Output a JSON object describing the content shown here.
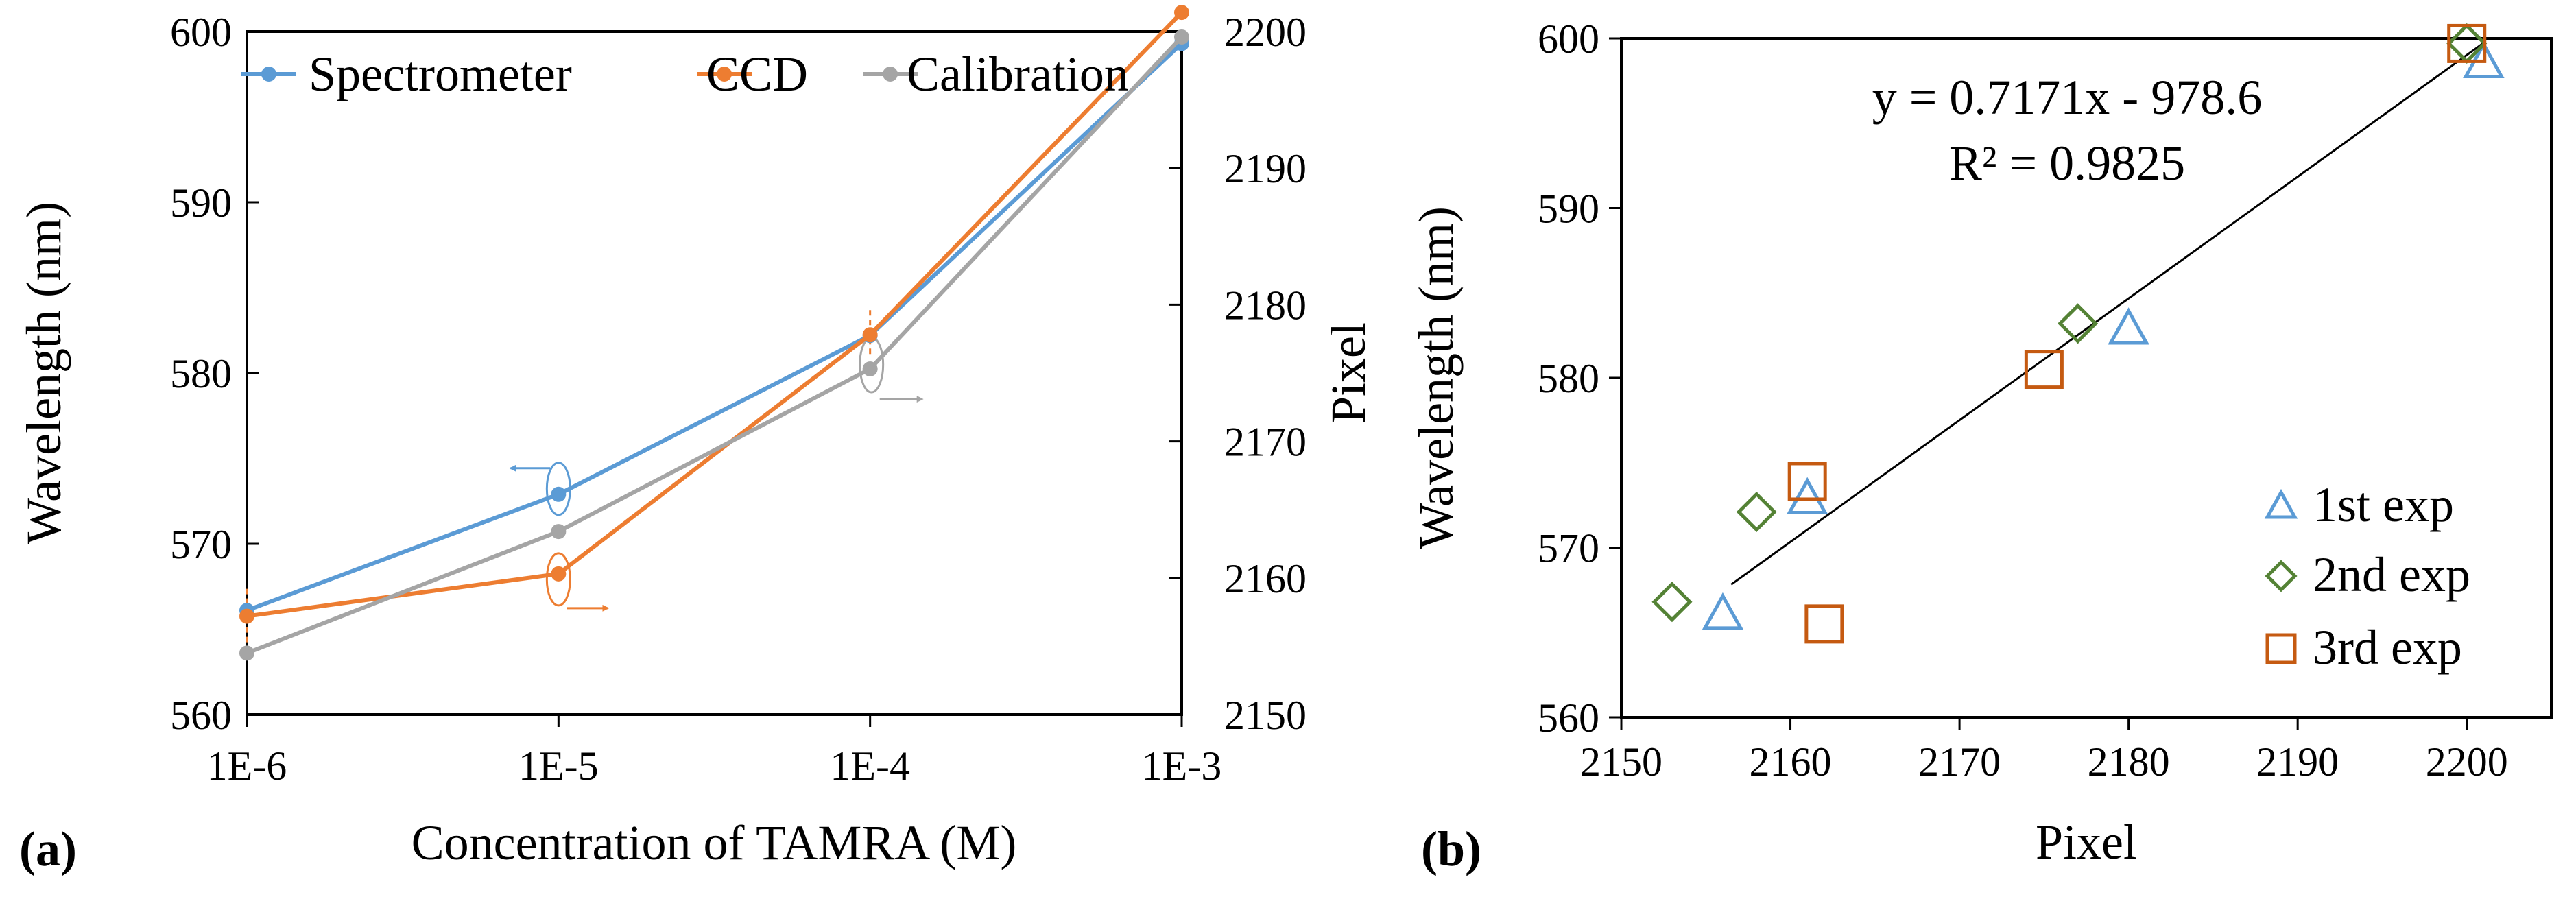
{
  "chart_data": [
    {
      "type": "line",
      "panel_label": "(a)",
      "xlabel": "Concentration of TAMRA (M)",
      "ylabel": "Wavelength (nm)",
      "y2label": "Pixel",
      "x_scale": "log",
      "categories": [
        "1E-6",
        "1E-5",
        "1E-4",
        "1E-3"
      ],
      "x": [
        1e-06,
        1e-05,
        0.0001,
        0.001
      ],
      "ylim": [
        560,
        600
      ],
      "yticks": [
        "560",
        "570",
        "580",
        "590",
        "600"
      ],
      "y2lim": [
        2150,
        2200
      ],
      "y2ticks": [
        "2150",
        "2160",
        "2170",
        "2180",
        "2190",
        "2200"
      ],
      "legend_position": "top",
      "series": [
        {
          "name": "Spectrometer",
          "axis": "left",
          "color": "#5b9bd5",
          "values": [
            566.1,
            572.9,
            582.2,
            599.3
          ]
        },
        {
          "name": "CCD",
          "axis": "right",
          "color": "#ed7d31",
          "values": [
            2157.2,
            2160.3,
            2177.8,
            2201.4
          ]
        },
        {
          "name": "Calibration",
          "axis": "right",
          "color": "#a5a5a5",
          "values": [
            2154.5,
            2163.4,
            2175.3,
            2199.6
          ]
        }
      ]
    },
    {
      "type": "scatter",
      "panel_label": "(b)",
      "xlabel": "Pixel",
      "ylabel": "Wavelength (nm)",
      "xlim": [
        2150,
        2205
      ],
      "xticks": [
        "2150",
        "2160",
        "2170",
        "2180",
        "2190",
        "2200"
      ],
      "ylim": [
        560,
        600
      ],
      "yticks": [
        "560",
        "570",
        "580",
        "590",
        "600"
      ],
      "legend_position": "bottom-right",
      "equation": "y = 0.7171x - 978.6",
      "r_squared": "R² = 0.9825",
      "trendline": {
        "x": [
          2156.5,
          2201
        ],
        "slope": 0.7171,
        "intercept": -978.6
      },
      "series": [
        {
          "name": "1st exp",
          "marker": "triangle",
          "color": "#5b9bd5",
          "x": [
            2156,
            2161,
            2180,
            2201
          ],
          "y": [
            566.1,
            572.9,
            582.9,
            598.6
          ]
        },
        {
          "name": "2nd exp",
          "marker": "diamond",
          "color": "#548235",
          "x": [
            2153,
            2158,
            2177,
            2200
          ],
          "y": [
            566.8,
            572.1,
            583.2,
            599.7
          ]
        },
        {
          "name": "3rd exp",
          "marker": "square",
          "color": "#c55a11",
          "x": [
            2162,
            2161,
            2175,
            2200
          ],
          "y": [
            565.5,
            573.9,
            580.5,
            599.7
          ]
        }
      ]
    }
  ]
}
